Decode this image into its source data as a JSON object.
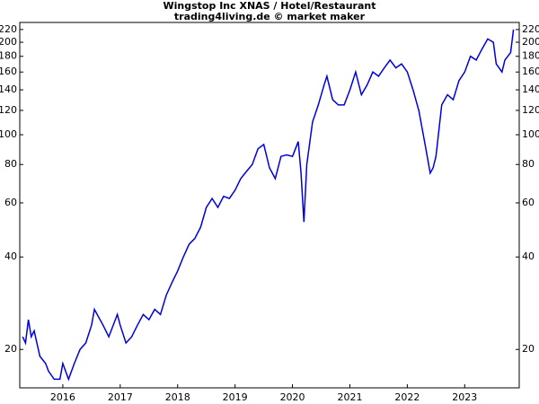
{
  "chart_data": {
    "type": "line",
    "title": "Wingstop Inc XNAS / Hotel/Restaurant",
    "subtitle": "trading4living.de © market maker",
    "log_scale": true,
    "x": [
      2015.3,
      2015.35,
      2015.4,
      2015.45,
      2015.5,
      2015.6,
      2015.7,
      2015.75,
      2015.85,
      2015.95,
      2016.0,
      2016.1,
      2016.2,
      2016.3,
      2016.4,
      2016.5,
      2016.55,
      2016.7,
      2016.8,
      2016.95,
      2017.0,
      2017.1,
      2017.2,
      2017.3,
      2017.4,
      2017.5,
      2017.6,
      2017.7,
      2017.8,
      2017.9,
      2018.0,
      2018.1,
      2018.2,
      2018.3,
      2018.4,
      2018.5,
      2018.6,
      2018.7,
      2018.8,
      2018.9,
      2019.0,
      2019.1,
      2019.2,
      2019.3,
      2019.4,
      2019.5,
      2019.6,
      2019.7,
      2019.8,
      2019.9,
      2020.0,
      2020.1,
      2020.15,
      2020.2,
      2020.25,
      2020.35,
      2020.45,
      2020.55,
      2020.6,
      2020.7,
      2020.8,
      2020.9,
      2021.0,
      2021.1,
      2021.2,
      2021.3,
      2021.4,
      2021.5,
      2021.6,
      2021.7,
      2021.8,
      2021.9,
      2022.0,
      2022.1,
      2022.2,
      2022.3,
      2022.4,
      2022.45,
      2022.5,
      2022.6,
      2022.7,
      2022.8,
      2022.9,
      2023.0,
      2023.1,
      2023.2,
      2023.3,
      2023.4,
      2023.5,
      2023.55,
      2023.65,
      2023.7,
      2023.8,
      2023.85
    ],
    "series": [
      {
        "name": "Wingstop",
        "color": "#0000dd",
        "values": [
          22,
          21,
          25,
          22,
          23,
          19,
          18,
          17,
          16,
          16,
          18,
          16,
          18,
          20,
          21,
          24,
          27,
          24,
          22,
          26,
          24,
          21,
          22,
          24,
          26,
          25,
          27,
          26,
          30,
          33,
          36,
          40,
          44,
          46,
          50,
          58,
          62,
          58,
          63,
          62,
          66,
          72,
          76,
          80,
          90,
          93,
          78,
          72,
          85,
          86,
          85,
          95,
          75,
          52,
          80,
          110,
          125,
          145,
          155,
          130,
          125,
          125,
          140,
          160,
          135,
          145,
          160,
          155,
          165,
          175,
          165,
          170,
          160,
          140,
          120,
          95,
          75,
          78,
          85,
          125,
          135,
          130,
          150,
          160,
          180,
          175,
          190,
          205,
          200,
          170,
          160,
          175,
          185,
          220
        ]
      }
    ],
    "xlim": [
      2015.25,
      2023.95
    ],
    "xticks": [
      2016,
      2017,
      2018,
      2019,
      2020,
      2021,
      2022,
      2023
    ],
    "ylim": [
      15,
      232
    ],
    "yticks": [
      20,
      40,
      60,
      80,
      100,
      120,
      140,
      160,
      180,
      200,
      220
    ]
  }
}
